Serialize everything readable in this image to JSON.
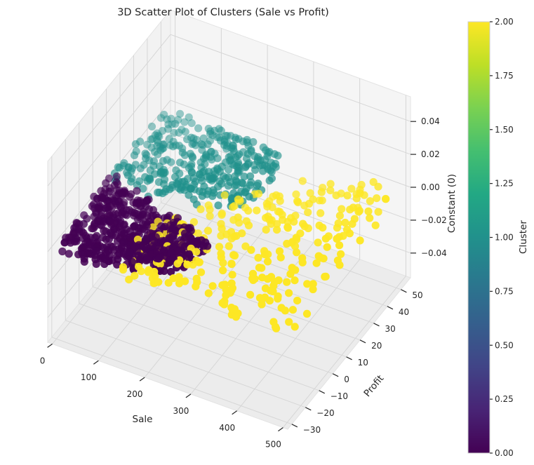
{
  "chart_data": {
    "type": "scatter",
    "projection": "3d",
    "title": "3D Scatter Plot of Clusters (Sale vs Profit)",
    "xlabel": "Sale",
    "ylabel": "Profit",
    "zlabel": "Constant (0)",
    "xticks": [
      "0",
      "100",
      "200",
      "300",
      "400",
      "500"
    ],
    "yticks": [
      "−30",
      "−20",
      "−10",
      "0",
      "10",
      "20",
      "30",
      "40",
      "50"
    ],
    "zticks": [
      "−0.04",
      "−0.02",
      "0.00",
      "0.02",
      "0.04"
    ],
    "xlim": [
      -10,
      510
    ],
    "ylim": [
      -33,
      57
    ],
    "zlim": [
      -0.055,
      0.055
    ],
    "colorbar": {
      "label": "Cluster",
      "ticks": [
        "0.00",
        "0.25",
        "0.50",
        "0.75",
        "1.00",
        "1.25",
        "1.50",
        "1.75",
        "2.00"
      ],
      "range": [
        0,
        2
      ],
      "colormap": "viridis"
    },
    "grid": true,
    "clusters": [
      {
        "cluster": 0,
        "color": "#440154",
        "sale_range": [
          0,
          250
        ],
        "profit_range": [
          -30,
          12
        ]
      },
      {
        "cluster": 1,
        "color": "#21918c",
        "sale_range": [
          0,
          260
        ],
        "profit_range": [
          10,
          50
        ]
      },
      {
        "cluster": 2,
        "color": "#fde725",
        "sale_range": [
          130,
          500
        ],
        "profit_range": [
          -30,
          50
        ]
      }
    ]
  }
}
